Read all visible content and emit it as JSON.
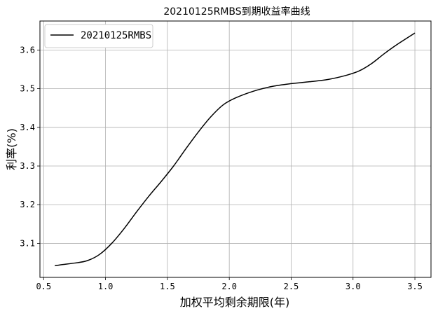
{
  "chart_data": {
    "type": "line",
    "title": "20210125RMBS到期收益率曲线",
    "xlabel": "加权平均剩余期限(年)",
    "ylabel": "利率(%)",
    "xlim": [
      0.47,
      3.63
    ],
    "ylim": [
      3.012,
      3.675
    ],
    "xticks": [
      0.5,
      1.0,
      1.5,
      2.0,
      2.5,
      3.0,
      3.5
    ],
    "xtick_labels": [
      "0.5",
      "1.0",
      "1.5",
      "2.0",
      "2.5",
      "3.0",
      "3.5"
    ],
    "yticks": [
      3.1,
      3.2,
      3.3,
      3.4,
      3.5,
      3.6
    ],
    "ytick_labels": [
      "3.1",
      "3.2",
      "3.3",
      "3.4",
      "3.5",
      "3.6"
    ],
    "grid": true,
    "legend_position": "top-left",
    "series": [
      {
        "name": "20210125RMBS",
        "color": "#000000",
        "x": [
          0.59,
          0.65,
          0.75,
          0.85,
          0.95,
          1.05,
          1.15,
          1.25,
          1.35,
          1.45,
          1.55,
          1.65,
          1.75,
          1.85,
          1.95,
          2.05,
          2.2,
          2.35,
          2.5,
          2.65,
          2.8,
          2.95,
          3.05,
          3.15,
          3.25,
          3.35,
          3.5
        ],
        "y": [
          3.042,
          3.045,
          3.049,
          3.055,
          3.071,
          3.1,
          3.138,
          3.181,
          3.222,
          3.26,
          3.3,
          3.345,
          3.388,
          3.427,
          3.458,
          3.476,
          3.494,
          3.506,
          3.513,
          3.518,
          3.524,
          3.535,
          3.546,
          3.565,
          3.59,
          3.613,
          3.644
        ]
      }
    ]
  }
}
